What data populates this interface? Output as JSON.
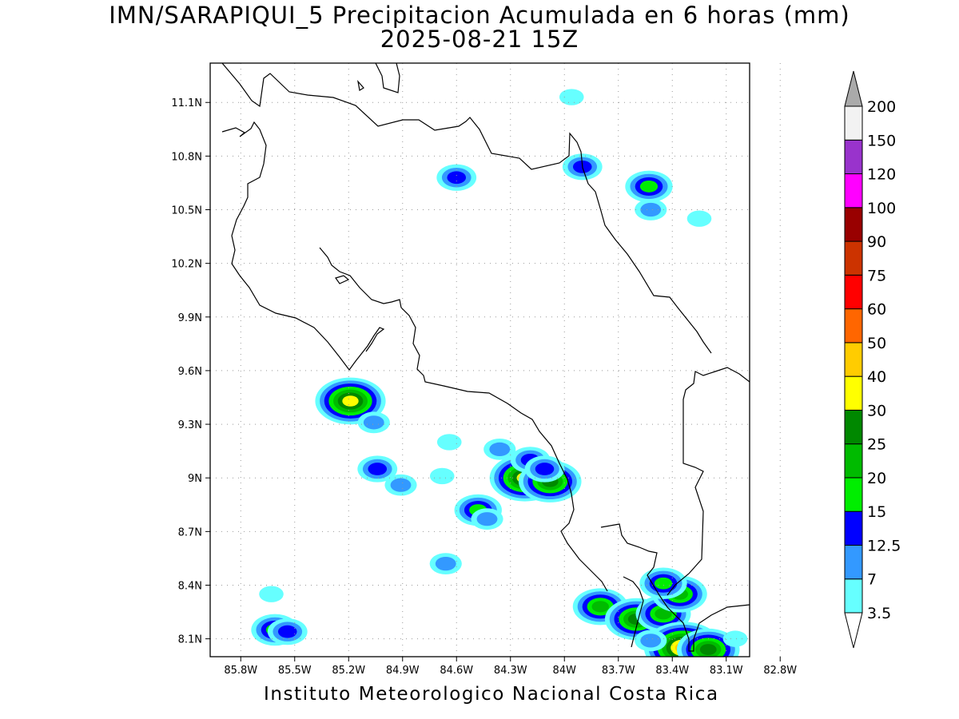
{
  "title": {
    "line1": "IMN/SARAPIQUI_5 Precipitacion Acumulada en 6 horas (mm)",
    "line2": "2025-08-21 15Z"
  },
  "footer": "Instituto Meteorologico Nacional Costa Rica",
  "chart_data": {
    "type": "heatmap",
    "x_axis": {
      "ticks": [
        -85.8,
        -85.5,
        -85.2,
        -84.9,
        -84.6,
        -84.3,
        -84.0,
        -83.7,
        -83.4,
        -83.1,
        -82.8
      ],
      "tick_labels": [
        "85.8W",
        "85.5W",
        "85.2W",
        "84.9W",
        "84.6W",
        "84.3W",
        "84W",
        "83.7W",
        "83.4W",
        "83.1W",
        "82.8W"
      ],
      "range": [
        -85.97,
        -82.97
      ]
    },
    "y_axis": {
      "ticks": [
        8.1,
        8.4,
        8.7,
        9.0,
        9.3,
        9.6,
        9.9,
        10.2,
        10.5,
        10.8,
        11.1
      ],
      "tick_labels": [
        "8.1N",
        "8.4N",
        "8.7N",
        "9N",
        "9.3N",
        "9.6N",
        "9.9N",
        "10.2N",
        "10.5N",
        "10.8N",
        "11.1N"
      ],
      "range": [
        8.0,
        11.32
      ]
    },
    "grid": true,
    "colorbar": {
      "levels": [
        "3.5",
        "7",
        "12.5",
        "15",
        "20",
        "25",
        "30",
        "40",
        "50",
        "60",
        "75",
        "90",
        "100",
        "120",
        "150",
        "200"
      ],
      "colors": [
        "#66ffff",
        "#3399ff",
        "#0000ff",
        "#00ee00",
        "#00bb00",
        "#008800",
        "#ffff00",
        "#ffcc00",
        "#ff6600",
        "#ff0000",
        "#cc3300",
        "#990000",
        "#ff00ff",
        "#9933cc",
        "#f2f2f2",
        "#aaaaaa"
      ]
    },
    "cells": [
      {
        "lon": -84.6,
        "lat": 10.68,
        "value": 12.5
      },
      {
        "lon": -83.9,
        "lat": 10.74,
        "value": 12.5
      },
      {
        "lon": -83.53,
        "lat": 10.63,
        "value": 15
      },
      {
        "lon": -83.52,
        "lat": 10.5,
        "value": 7
      },
      {
        "lon": -83.96,
        "lat": 11.13,
        "value": 3.5
      },
      {
        "lon": -83.25,
        "lat": 10.45,
        "value": 3.5
      },
      {
        "lon": -85.19,
        "lat": 9.43,
        "value": 30
      },
      {
        "lon": -85.06,
        "lat": 9.31,
        "value": 7
      },
      {
        "lon": -85.04,
        "lat": 9.05,
        "value": 12.5
      },
      {
        "lon": -84.91,
        "lat": 8.96,
        "value": 7
      },
      {
        "lon": -84.68,
        "lat": 9.01,
        "value": 3.5
      },
      {
        "lon": -84.64,
        "lat": 9.2,
        "value": 3.5
      },
      {
        "lon": -84.48,
        "lat": 8.82,
        "value": 15
      },
      {
        "lon": -84.43,
        "lat": 8.77,
        "value": 7
      },
      {
        "lon": -84.66,
        "lat": 8.52,
        "value": 7
      },
      {
        "lon": -84.36,
        "lat": 9.16,
        "value": 7
      },
      {
        "lon": -84.22,
        "lat": 9.0,
        "value": 30
      },
      {
        "lon": -84.08,
        "lat": 8.98,
        "value": 25
      },
      {
        "lon": -84.19,
        "lat": 9.1,
        "value": 12.5
      },
      {
        "lon": -84.11,
        "lat": 9.05,
        "value": 12.5
      },
      {
        "lon": -85.61,
        "lat": 8.15,
        "value": 15
      },
      {
        "lon": -85.54,
        "lat": 8.14,
        "value": 12.5
      },
      {
        "lon": -85.63,
        "lat": 8.35,
        "value": 3.5
      },
      {
        "lon": -83.8,
        "lat": 8.28,
        "value": 20
      },
      {
        "lon": -83.6,
        "lat": 8.21,
        "value": 25
      },
      {
        "lon": -83.45,
        "lat": 8.24,
        "value": 20
      },
      {
        "lon": -83.36,
        "lat": 8.35,
        "value": 20
      },
      {
        "lon": -83.45,
        "lat": 8.41,
        "value": 15
      },
      {
        "lon": -83.34,
        "lat": 8.05,
        "value": 40
      },
      {
        "lon": -83.2,
        "lat": 8.04,
        "value": 25
      },
      {
        "lon": -83.52,
        "lat": 8.09,
        "value": 7
      },
      {
        "lon": -83.05,
        "lat": 8.1,
        "value": 3.5
      }
    ]
  }
}
